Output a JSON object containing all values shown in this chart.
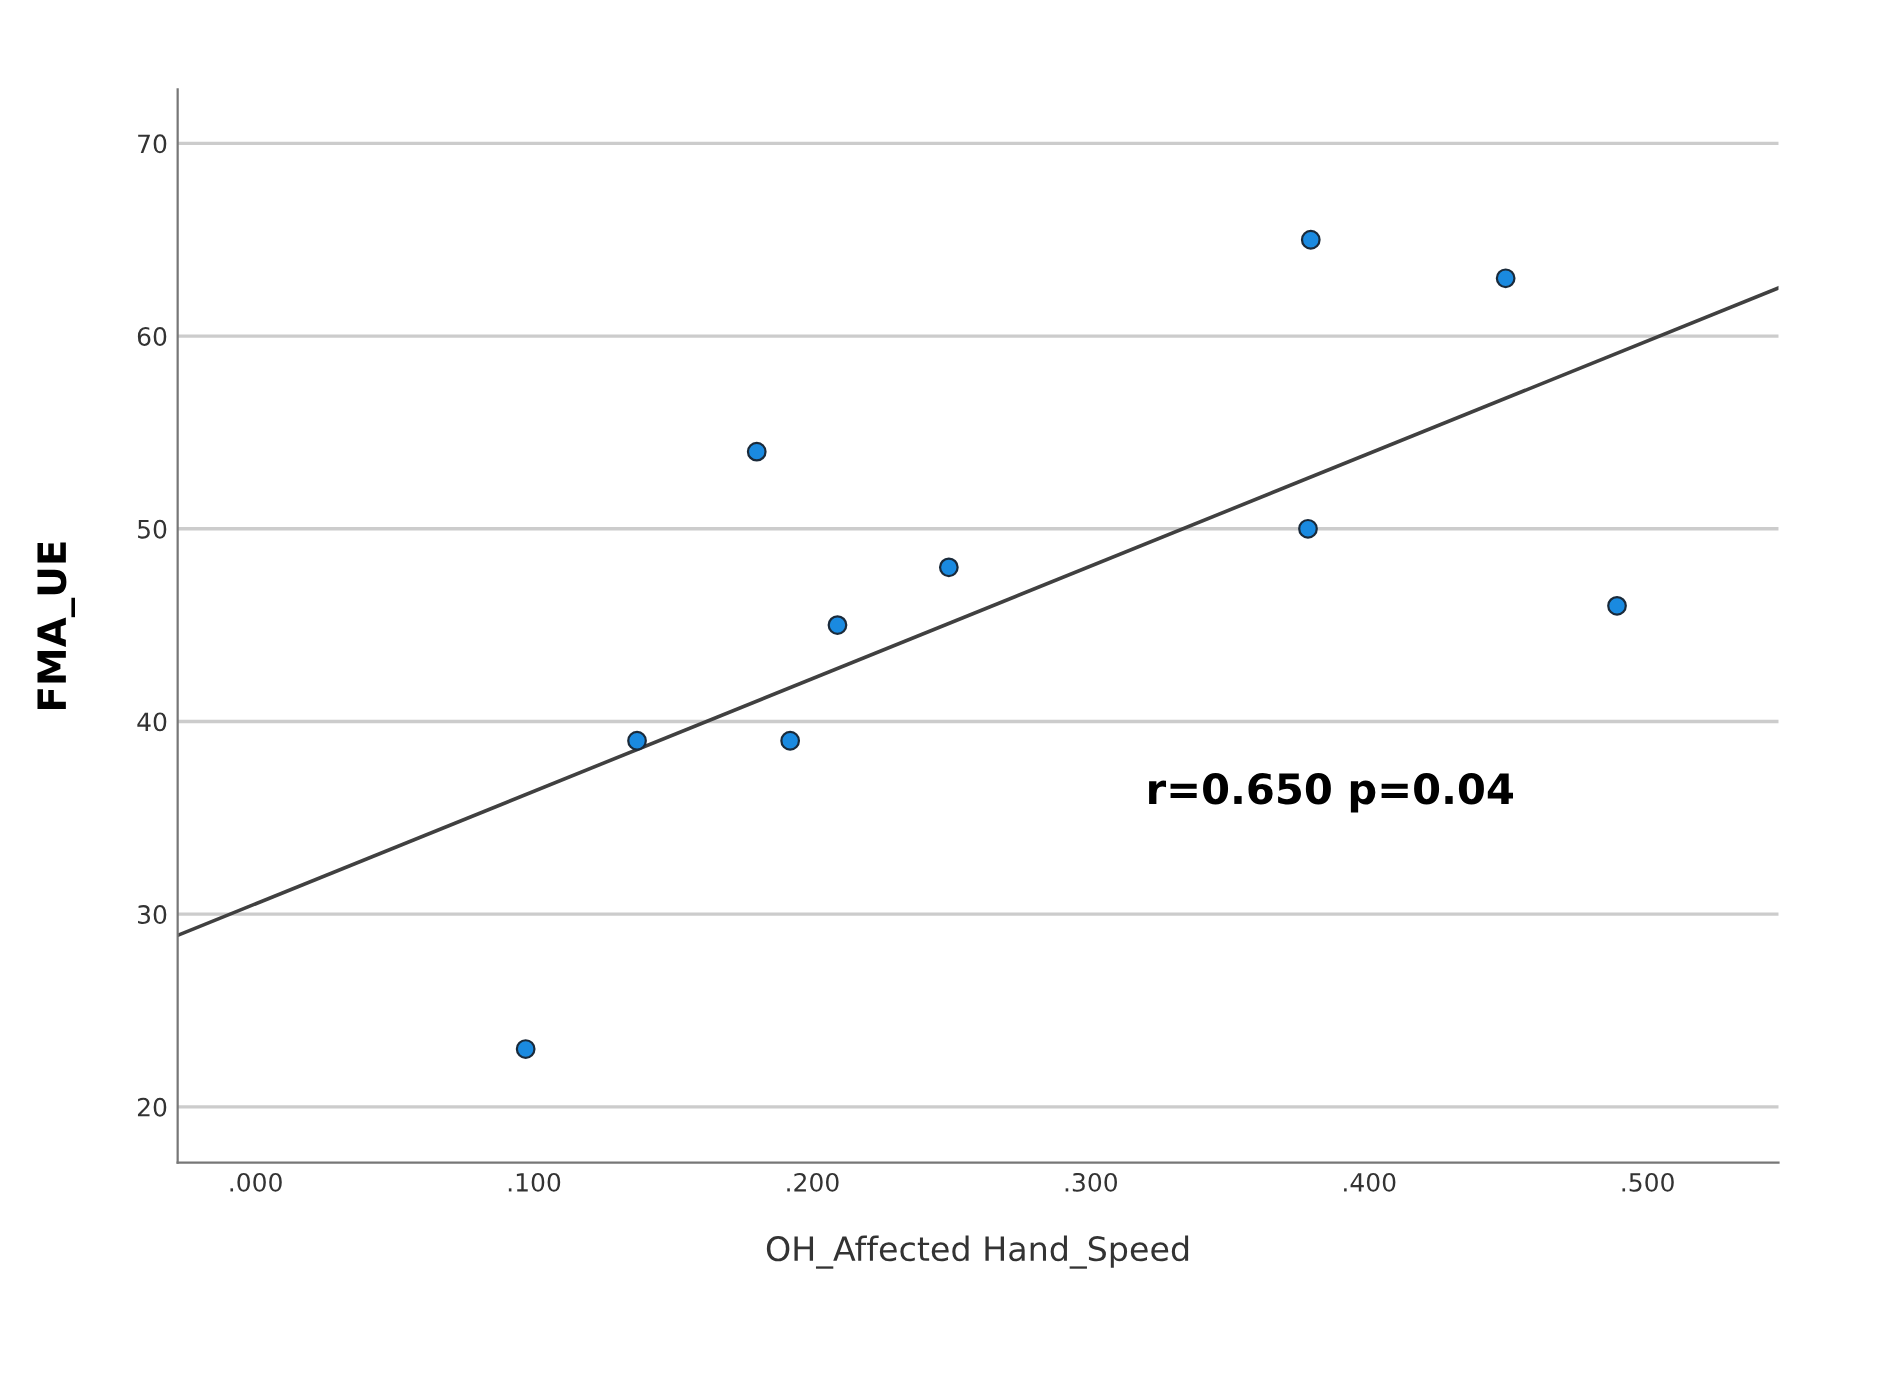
{
  "chart_data": {
    "type": "scatter",
    "xlabel": "OH_Affected Hand_Speed",
    "ylabel": "FMA_UE",
    "annotations": [
      "r=0.650 p=0.04"
    ],
    "xlim": [
      -0.028,
      0.547
    ],
    "ylim": [
      17.1,
      72.8
    ],
    "xticks": [
      {
        "value": 0,
        "label": ".000"
      },
      {
        "value": 0.1,
        "label": ".100"
      },
      {
        "value": 0.2,
        "label": ".200"
      },
      {
        "value": 0.3,
        "label": ".300"
      },
      {
        "value": 0.4,
        "label": ".400"
      },
      {
        "value": 0.5,
        "label": ".500"
      }
    ],
    "yticks": [
      20,
      30,
      40,
      50,
      60,
      70
    ],
    "grid": "y",
    "series": [
      {
        "color": "#1a8ae0",
        "marker": "circle",
        "x": [
          0.097,
          0.137,
          0.18,
          0.192,
          0.209,
          0.249,
          0.379,
          0.378,
          0.449,
          0.489
        ],
        "values": [
          23,
          39,
          54,
          39,
          45,
          48,
          65,
          50,
          63,
          46
        ]
      },
      {
        "type": "line",
        "color": "#404040",
        "line_style": "solid",
        "x": [
          -0.028,
          0.547
        ],
        "values": [
          28.9,
          62.5
        ]
      }
    ]
  }
}
